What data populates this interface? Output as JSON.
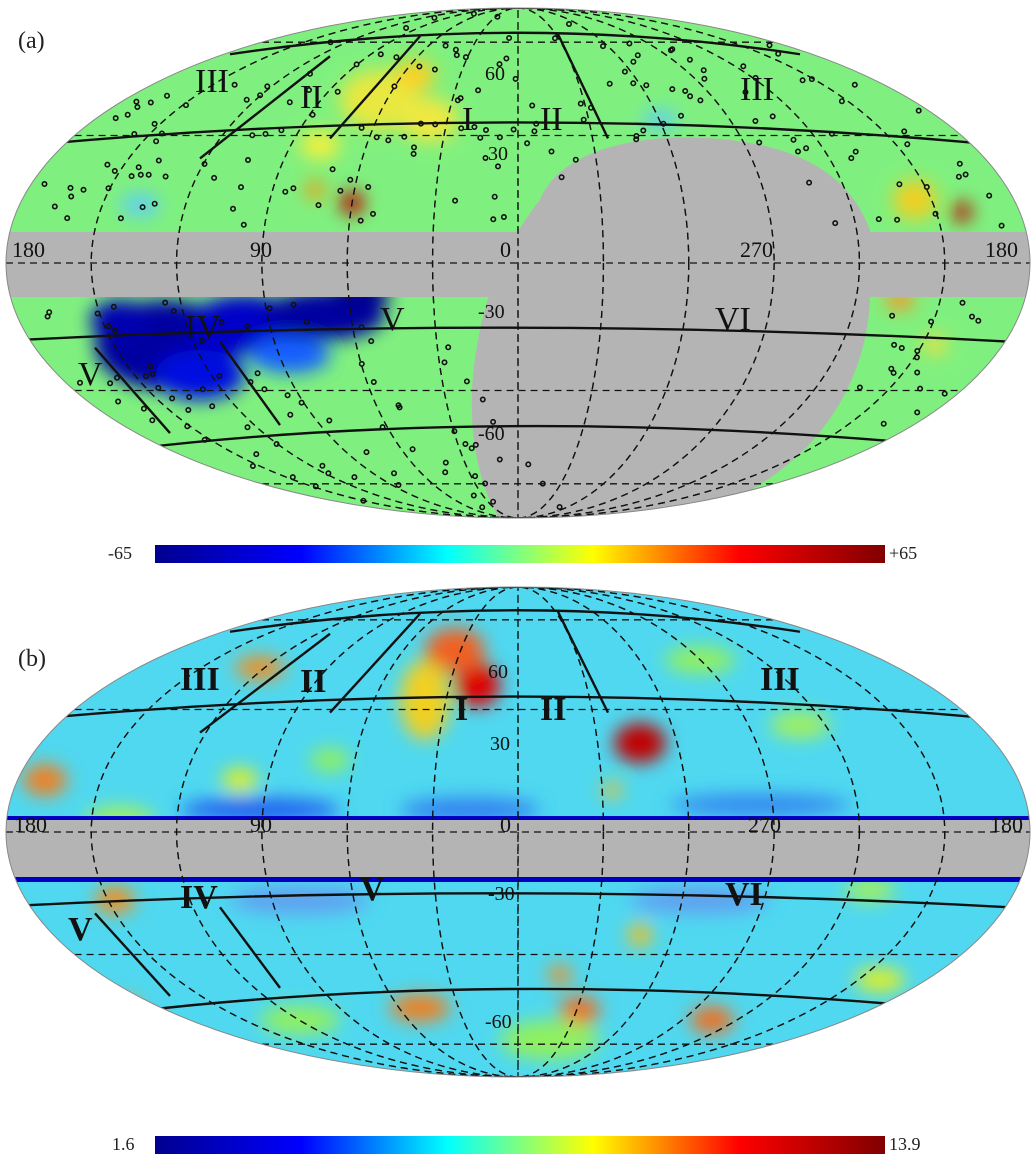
{
  "colors": {
    "background": "#ffffff",
    "mask": "#b4b4b4",
    "map_base": "#7ff07f",
    "grid": "#111111",
    "markers": "#111111"
  },
  "colormap": [
    "#00008f",
    "#0000ff",
    "#00ffff",
    "#ffff00",
    "#ff0000",
    "#800000"
  ],
  "panels": [
    {
      "label": "(a)",
      "colorbar": {
        "min_label": "-65",
        "max_label": "+65"
      },
      "longitude_labels": [
        "180",
        "90",
        "0",
        "270",
        "180"
      ],
      "latitude_labels": [
        "60",
        "30",
        "-30",
        "-60"
      ],
      "region_labels": [
        "III",
        "II",
        "I",
        "II",
        "III",
        "IV",
        "V",
        "V",
        "VI"
      ],
      "has_source_markers": true
    },
    {
      "label": "(b)",
      "colorbar": {
        "min_label": "1.6",
        "max_label": "13.9"
      },
      "longitude_labels": [
        "180",
        "90",
        "0",
        "270",
        "180"
      ],
      "latitude_labels": [
        "60",
        "30",
        "-30",
        "-60"
      ],
      "region_labels": [
        "III",
        "II",
        "I",
        "II",
        "III",
        "V",
        "IV",
        "V",
        "VI"
      ],
      "has_source_markers": false
    }
  ]
}
